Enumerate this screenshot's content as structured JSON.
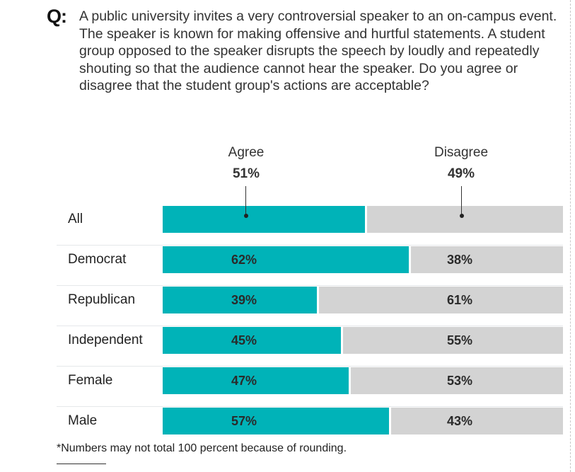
{
  "question": {
    "marker": "Q:",
    "text": "A public university invites a very controversial speaker to an on-campus event. The speaker is known for making offensive and hurtful statements. A student group opposed to the speaker disrupts the speech by loudly and repeatedly shouting so that the audience cannot hear the speaker. Do you agree or disagree that the student group's actions are acceptable?"
  },
  "footnote": "*Numbers may not total 100 percent because of rounding.",
  "colors": {
    "agree": "#00b3b8",
    "disagree": "#d3d3d3"
  },
  "chart_data": {
    "type": "bar",
    "orientation": "horizontal-stacked",
    "title": "",
    "xlabel": "",
    "ylabel": "",
    "xlim": [
      0,
      100
    ],
    "legend": "top",
    "series_names": [
      "Agree",
      "Disagree"
    ],
    "header": {
      "agree_label": "Agree",
      "agree_value": "51%",
      "disagree_label": "Disagree",
      "disagree_value": "49%"
    },
    "categories": [
      "All",
      "Democrat",
      "Republican",
      "Independent",
      "Female",
      "Male"
    ],
    "series": [
      {
        "name": "Agree",
        "values": [
          51,
          62,
          39,
          45,
          47,
          57
        ]
      },
      {
        "name": "Disagree",
        "values": [
          49,
          38,
          61,
          55,
          53,
          43
        ]
      }
    ],
    "data_labels": [
      {
        "agree": "",
        "disagree": ""
      },
      {
        "agree": "62%",
        "disagree": "38%"
      },
      {
        "agree": "39%",
        "disagree": "61%"
      },
      {
        "agree": "45%",
        "disagree": "55%"
      },
      {
        "agree": "47%",
        "disagree": "53%"
      },
      {
        "agree": "57%",
        "disagree": "43%"
      }
    ]
  }
}
